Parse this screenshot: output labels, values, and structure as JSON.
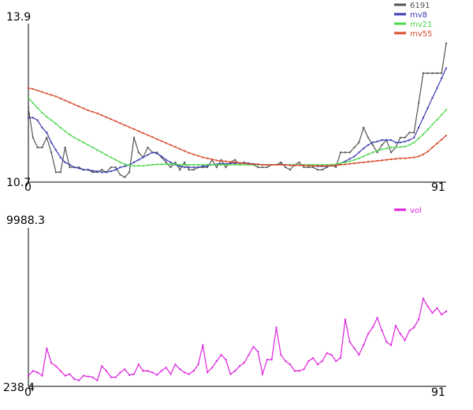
{
  "chart_data": [
    {
      "type": "line",
      "x_range": [
        0,
        91
      ],
      "x_tick_labels": [
        "0",
        "91"
      ],
      "ylim": [
        10.7,
        13.9
      ],
      "y_tick_labels": [
        "10.7",
        "13.9"
      ],
      "legend_position": "top-right",
      "series": [
        {
          "name": "6191",
          "color": "#555555",
          "values": [
            12.2,
            11.6,
            11.4,
            11.4,
            11.6,
            11.3,
            10.9,
            10.9,
            11.4,
            11.0,
            11.0,
            11.0,
            10.95,
            10.95,
            10.9,
            10.9,
            10.95,
            10.9,
            11.0,
            11.0,
            10.85,
            10.8,
            10.9,
            11.6,
            11.3,
            11.2,
            11.4,
            11.3,
            11.3,
            11.2,
            11.1,
            11.0,
            11.1,
            10.95,
            11.1,
            10.95,
            10.95,
            11.0,
            11.0,
            11.0,
            11.15,
            11.0,
            11.15,
            11.0,
            11.1,
            11.15,
            11.05,
            11.1,
            11.05,
            11.05,
            11.0,
            11.0,
            11.0,
            11.05,
            11.05,
            11.1,
            11.0,
            10.95,
            11.05,
            11.1,
            11.0,
            11.0,
            11.0,
            10.95,
            10.95,
            11.0,
            11.05,
            11.0,
            11.3,
            11.3,
            11.3,
            11.4,
            11.5,
            11.8,
            11.6,
            11.45,
            11.3,
            11.45,
            11.55,
            11.3,
            11.4,
            11.6,
            11.6,
            11.7,
            11.7,
            12.3,
            12.9,
            12.9,
            12.9,
            12.9,
            12.9,
            13.5
          ],
          "rendered_value_count": 92
        },
        {
          "name": "mv8",
          "color": "#3b3bb0",
          "values": [
            12.0,
            12.0,
            11.95,
            11.8,
            11.7,
            11.5,
            11.35,
            11.2,
            11.1,
            11.05,
            11.0,
            10.98,
            10.95,
            10.95,
            10.93,
            10.92,
            10.9,
            10.9,
            10.92,
            10.95,
            11.0,
            11.02,
            11.05,
            11.1,
            11.15,
            11.2,
            11.25,
            11.3,
            11.28,
            11.22,
            11.15,
            11.1,
            11.05,
            11.02,
            11.0,
            11.0,
            11.0,
            11.0,
            11.02,
            11.03,
            11.05,
            11.06,
            11.07,
            11.07,
            11.08,
            11.08,
            11.09,
            11.09,
            11.08,
            11.07,
            11.06,
            11.05,
            11.05,
            11.05,
            11.05,
            11.06,
            11.05,
            11.04,
            11.04,
            11.05,
            11.05,
            11.04,
            11.03,
            11.02,
            11.02,
            11.02,
            11.03,
            11.04,
            11.08,
            11.12,
            11.17,
            11.22,
            11.3,
            11.38,
            11.45,
            11.5,
            11.52,
            11.55,
            11.55,
            11.55,
            11.5,
            11.5,
            11.52,
            11.55,
            11.6,
            11.8,
            12.0,
            12.2,
            12.4,
            12.6,
            12.8,
            13.0
          ],
          "rendered_value_count": 92
        },
        {
          "name": "mv21",
          "color": "#4dd94d",
          "values": [
            12.4,
            12.3,
            12.2,
            12.1,
            12.02,
            11.95,
            11.88,
            11.8,
            11.73,
            11.66,
            11.6,
            11.55,
            11.5,
            11.45,
            11.4,
            11.35,
            11.3,
            11.25,
            11.2,
            11.15,
            11.1,
            11.06,
            11.04,
            11.03,
            11.03,
            11.03,
            11.04,
            11.05,
            11.06,
            11.06,
            11.06,
            11.06,
            11.06,
            11.05,
            11.05,
            11.05,
            11.05,
            11.05,
            11.05,
            11.05,
            11.05,
            11.05,
            11.05,
            11.05,
            11.05,
            11.05,
            11.05,
            11.05,
            11.05,
            11.05,
            11.05,
            11.05,
            11.05,
            11.05,
            11.05,
            11.05,
            11.05,
            11.05,
            11.05,
            11.05,
            11.05,
            11.05,
            11.05,
            11.05,
            11.05,
            11.05,
            11.05,
            11.06,
            11.08,
            11.1,
            11.12,
            11.15,
            11.18,
            11.22,
            11.26,
            11.3,
            11.33,
            11.36,
            11.38,
            11.4,
            11.4,
            11.41,
            11.42,
            11.45,
            11.5,
            11.58,
            11.67,
            11.76,
            11.86,
            11.96,
            12.06,
            12.16
          ],
          "rendered_value_count": 92
        },
        {
          "name": "mv55",
          "color": "#d94a2c",
          "values": [
            12.6,
            12.58,
            12.55,
            12.52,
            12.49,
            12.46,
            12.43,
            12.39,
            12.35,
            12.31,
            12.27,
            12.23,
            12.19,
            12.15,
            12.12,
            12.09,
            12.05,
            12.01,
            11.97,
            11.93,
            11.89,
            11.85,
            11.81,
            11.77,
            11.73,
            11.69,
            11.65,
            11.61,
            11.57,
            11.53,
            11.49,
            11.45,
            11.41,
            11.37,
            11.33,
            11.29,
            11.26,
            11.23,
            11.2,
            11.18,
            11.16,
            11.14,
            11.13,
            11.12,
            11.11,
            11.1,
            11.09,
            11.08,
            11.07,
            11.06,
            11.06,
            11.05,
            11.05,
            11.05,
            11.05,
            11.05,
            11.05,
            11.04,
            11.04,
            11.04,
            11.04,
            11.03,
            11.03,
            11.03,
            11.03,
            11.03,
            11.03,
            11.04,
            11.05,
            11.06,
            11.07,
            11.08,
            11.09,
            11.1,
            11.11,
            11.12,
            11.13,
            11.14,
            11.15,
            11.16,
            11.17,
            11.18,
            11.18,
            11.19,
            11.2,
            11.22,
            11.26,
            11.32,
            11.4,
            11.48,
            11.56,
            11.64
          ],
          "rendered_value_count": 92
        }
      ]
    },
    {
      "type": "line",
      "x_range": [
        0,
        91
      ],
      "x_tick_labels": [
        "0",
        "91"
      ],
      "ylim": [
        238.4,
        9988.3
      ],
      "y_tick_labels": [
        "238.4",
        "9988.3"
      ],
      "legend_position": "top-right",
      "series": [
        {
          "name": "vol",
          "color": "#dd22dd",
          "values": [
            900,
            1200,
            1100,
            900,
            2600,
            1700,
            1500,
            1200,
            900,
            1000,
            700,
            600,
            900,
            850,
            800,
            600,
            1500,
            1200,
            800,
            800,
            1100,
            1300,
            950,
            1000,
            1600,
            1200,
            1200,
            1100,
            950,
            1200,
            1400,
            1000,
            1600,
            1300,
            1100,
            1000,
            1200,
            1600,
            2800,
            1100,
            1400,
            1800,
            2200,
            1900,
            1000,
            1200,
            1500,
            1700,
            2200,
            2700,
            2400,
            1000,
            1900,
            1900,
            3900,
            2200,
            1800,
            1600,
            1200,
            1200,
            1300,
            1800,
            2000,
            1600,
            1800,
            2300,
            2200,
            1800,
            2000,
            4400,
            3000,
            2600,
            2200,
            2800,
            3500,
            3900,
            4500,
            3700,
            3000,
            2800,
            4000,
            3500,
            3100,
            3700,
            3900,
            4400,
            5700,
            5200,
            4800,
            5100,
            4700,
            4900
          ],
          "rendered_value_count": 92
        }
      ]
    }
  ]
}
